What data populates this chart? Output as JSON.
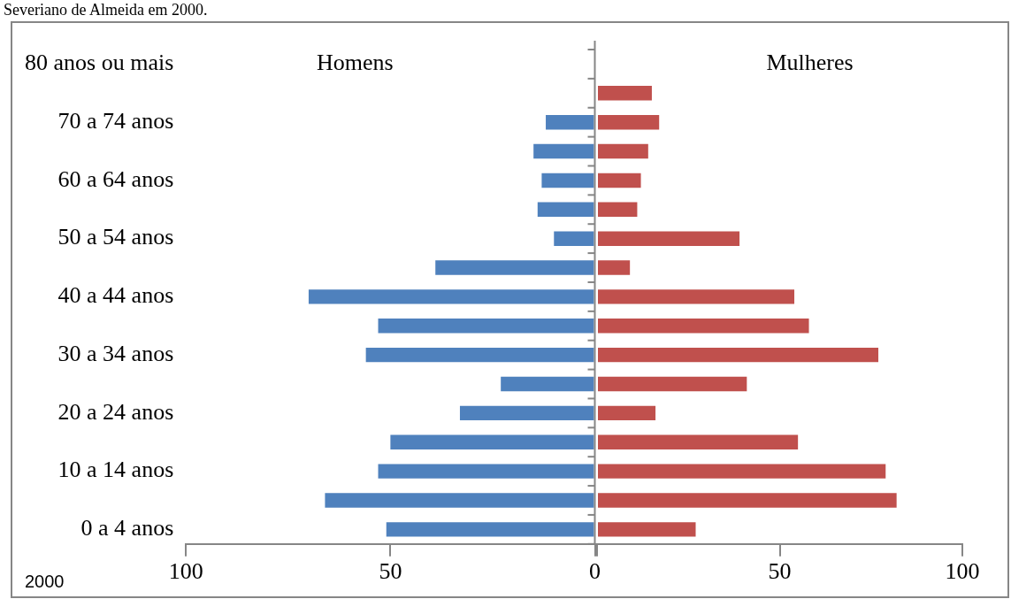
{
  "chart_data": [
    {
      "type": "bar",
      "orientation": "horizontal",
      "annotations": [
        "Severiano de Almeida em 2000.",
        "2000"
      ],
      "categories": [
        "80 anos ou mais",
        null,
        "70 a 74 anos",
        null,
        "60 a 64 anos",
        null,
        "50 a 54 anos",
        null,
        "40 a 44 anos",
        null,
        "30 a 34 anos",
        null,
        "20 a 24 anos",
        null,
        "10 a 14 anos",
        null,
        "0 a 4 anos"
      ],
      "series": [
        {
          "name": "Homens",
          "color": "#4f81bd",
          "values": [
            null,
            null,
            12,
            15,
            13,
            14,
            10,
            39,
            70,
            53,
            56,
            23,
            33,
            50,
            53,
            66,
            51
          ]
        }
      ],
      "xlim": [
        100,
        0
      ],
      "xticks": [
        100,
        50,
        0
      ],
      "grid": false,
      "legend": false
    },
    {
      "type": "bar",
      "orientation": "horizontal",
      "categories": [
        null,
        null,
        null,
        null,
        null,
        null,
        null,
        null,
        null,
        null,
        null,
        null,
        null,
        null,
        null,
        null,
        null
      ],
      "series": [
        {
          "name": "Mulheres",
          "color": "#c0504d",
          "values": [
            null,
            15,
            17,
            14,
            12,
            11,
            39,
            9,
            54,
            58,
            77,
            41,
            16,
            55,
            79,
            82,
            27
          ]
        }
      ],
      "xlim": [
        0,
        100
      ],
      "xticks": [
        {
          "value": 0,
          "label": null
        },
        50,
        100
      ],
      "tick_labels": "x",
      "grid": false,
      "legend": false
    }
  ]
}
